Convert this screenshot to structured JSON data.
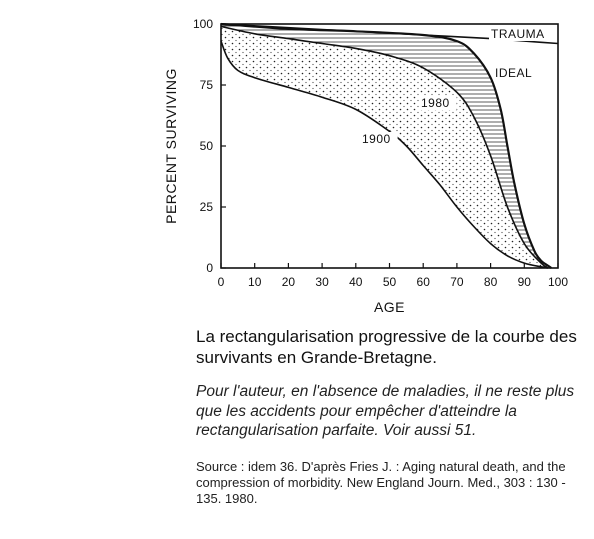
{
  "chart_data": {
    "type": "line",
    "xlabel": "AGE",
    "ylabel": "PERCENT SURVIVING",
    "xlim": [
      0,
      100
    ],
    "ylim": [
      0,
      100
    ],
    "x_ticks": [
      0,
      10,
      20,
      30,
      40,
      50,
      60,
      70,
      80,
      90,
      100
    ],
    "y_ticks": [
      0,
      25,
      50,
      75,
      100
    ],
    "grid": false,
    "legend": "none",
    "series": [
      {
        "name": "TRAUMA",
        "x": [
          0,
          20,
          40,
          60,
          80,
          95,
          100
        ],
        "y": [
          100,
          98.5,
          97,
          95.5,
          94,
          92.5,
          92
        ]
      },
      {
        "name": "IDEAL",
        "x": [
          0,
          20,
          40,
          60,
          70,
          75,
          80,
          83,
          85,
          87,
          90,
          93,
          95,
          97,
          98
        ],
        "y": [
          100,
          98,
          97,
          95.5,
          93,
          88,
          78,
          65,
          50,
          35,
          18,
          7,
          3,
          1,
          0
        ]
      },
      {
        "name": "1980",
        "x": [
          0,
          10,
          20,
          30,
          40,
          50,
          60,
          70,
          75,
          80,
          85,
          90,
          95,
          97
        ],
        "y": [
          99,
          96,
          94,
          92,
          90,
          87,
          82,
          72,
          62,
          46,
          25,
          10,
          2,
          0
        ]
      },
      {
        "name": "1900",
        "x": [
          0,
          2,
          5,
          10,
          20,
          30,
          40,
          50,
          55,
          60,
          65,
          70,
          75,
          80,
          85,
          90,
          95,
          97
        ],
        "y": [
          93,
          86,
          81,
          78,
          74,
          70,
          65,
          56,
          50,
          42,
          34,
          25,
          17,
          10,
          5,
          2,
          0.5,
          0
        ]
      }
    ]
  },
  "captions": {
    "main": "La rectangularisation progressive de la courbe des survivants en Grande-Bretagne.",
    "note": "Pour l'auteur, en l'absence de maladies, il ne reste plus que les accidents pour empêcher d'atteindre la rectangularisation parfaite. Voir aussi 51.",
    "source": "Source : idem 36. D'après Fries J. : Aging natural death, and the compression of morbidity. New England Journ. Med., 303 : 130 - 135. 1980."
  }
}
